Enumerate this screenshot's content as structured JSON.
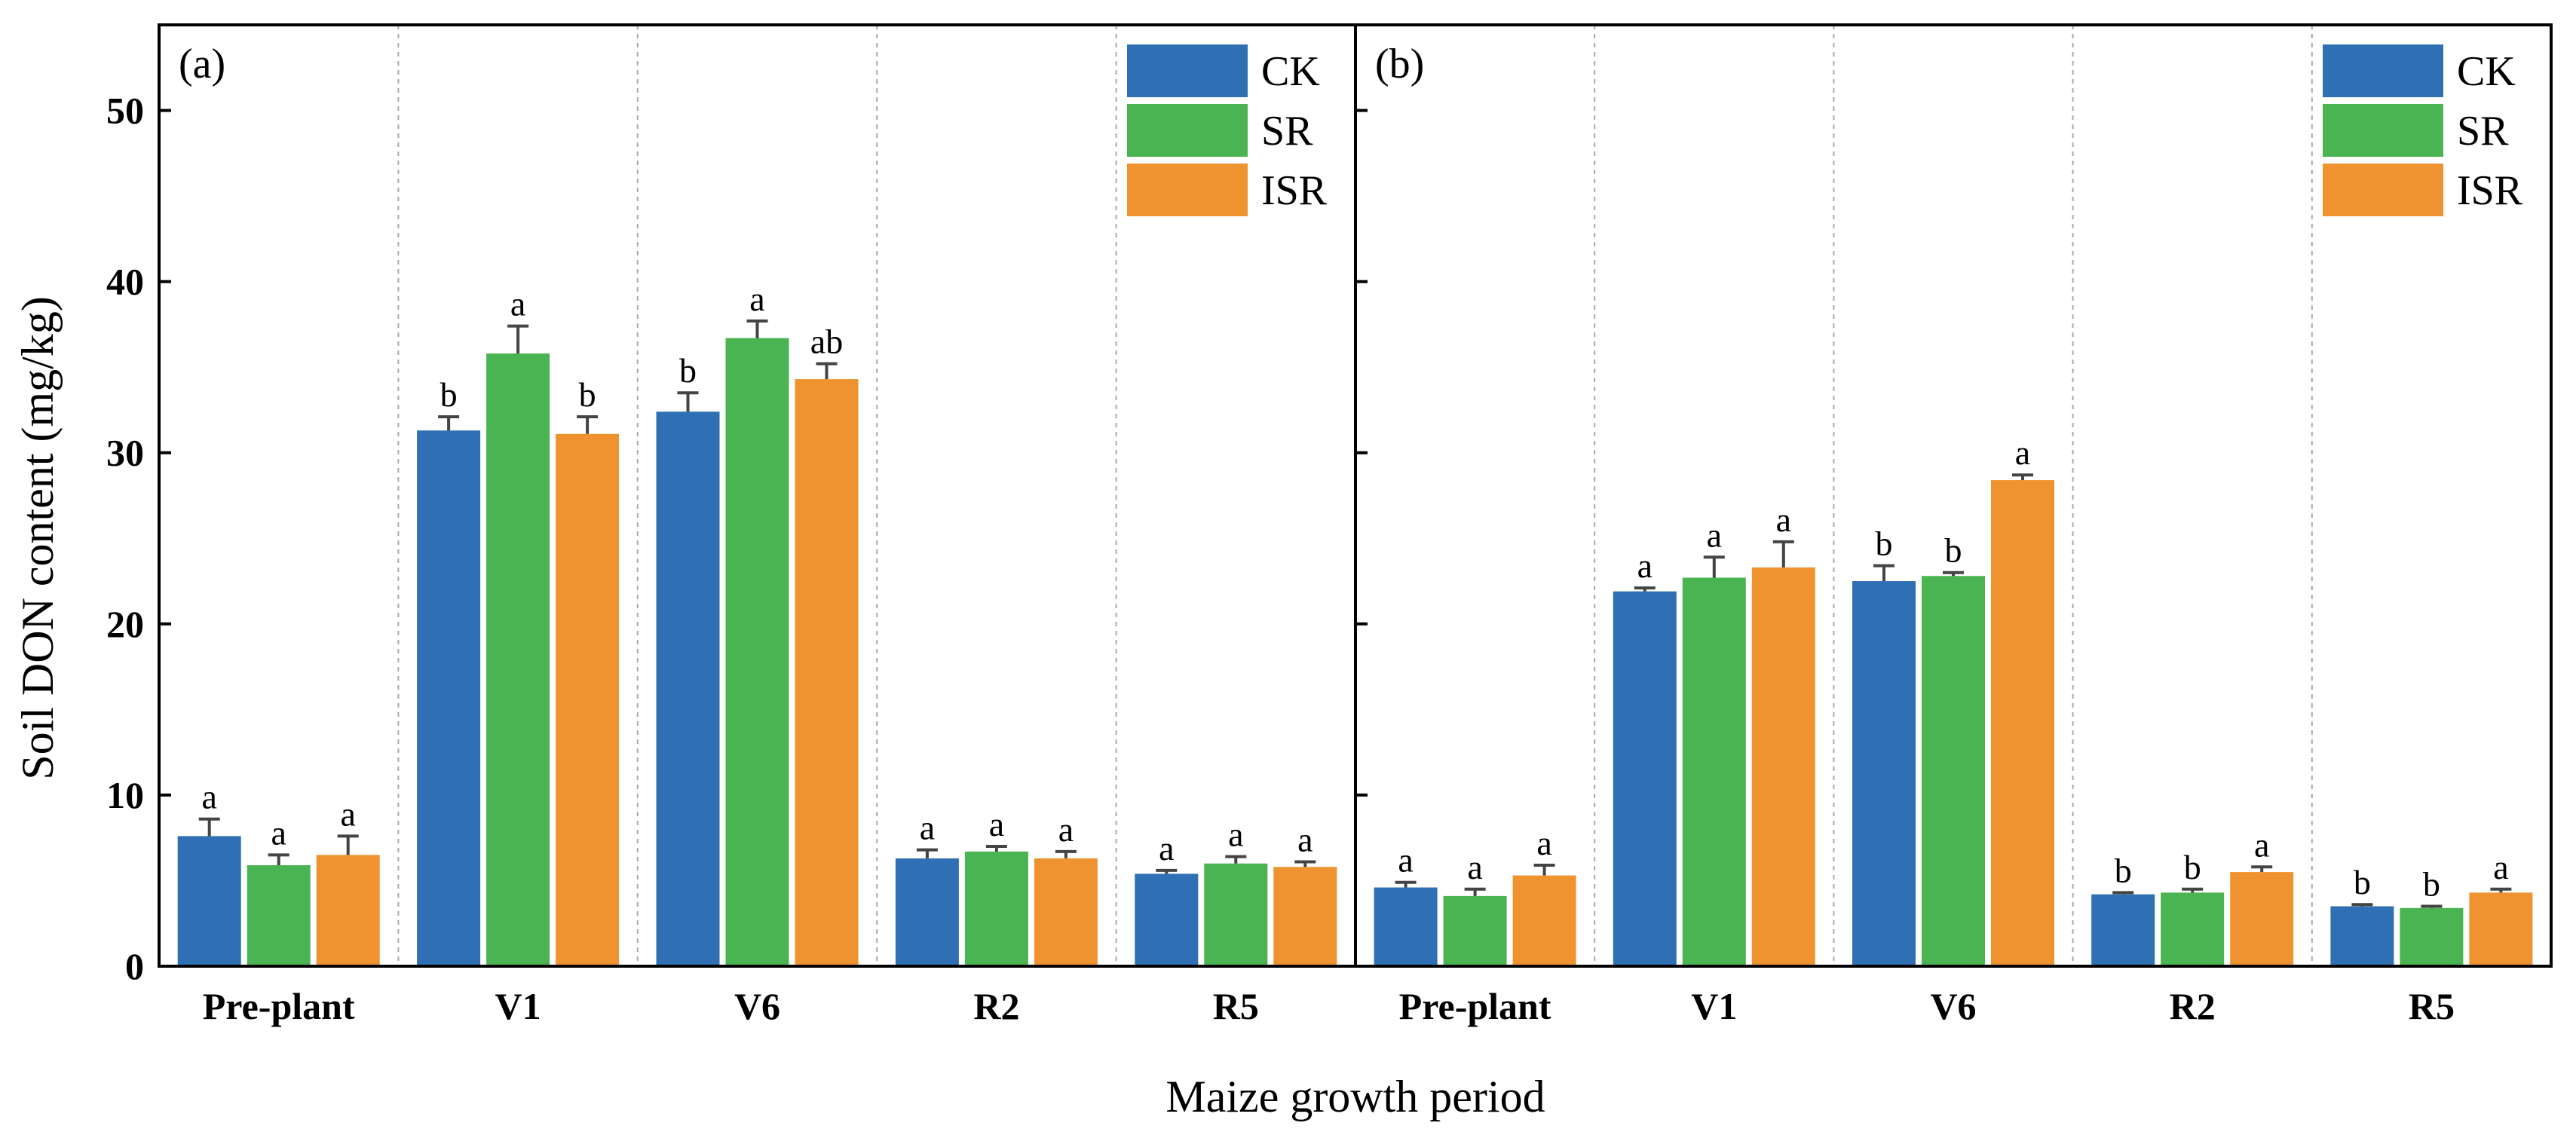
{
  "chart_data": {
    "type": "bar",
    "ylabel": "Soil DON content (mg/kg)",
    "xlabel": "Maize growth period",
    "ylim": [
      0,
      55
    ],
    "yticks": [
      0,
      10,
      20,
      30,
      40,
      50
    ],
    "grid": "vertical dashed separators between groups",
    "legend_placement": "top-right",
    "categories": [
      "Pre-plant",
      "V1",
      "V6",
      "R2",
      "R5"
    ],
    "colors": {
      "CK": "#2f70b5",
      "SR": "#4bb452",
      "ISR": "#ef9331"
    },
    "panels": [
      {
        "label": "(a)",
        "series": [
          {
            "name": "CK",
            "values": [
              7.6,
              31.3,
              32.4,
              6.3,
              5.4
            ],
            "errors": [
              1.0,
              0.8,
              1.1,
              0.5,
              0.2
            ],
            "letters": [
              "a",
              "b",
              "b",
              "a",
              "a"
            ]
          },
          {
            "name": "SR",
            "values": [
              5.9,
              35.8,
              36.7,
              6.7,
              6.0
            ],
            "errors": [
              0.6,
              1.6,
              1.0,
              0.3,
              0.4
            ],
            "letters": [
              "a",
              "a",
              "a",
              "a",
              "a"
            ]
          },
          {
            "name": "ISR",
            "values": [
              6.5,
              31.1,
              34.3,
              6.3,
              5.8
            ],
            "errors": [
              1.1,
              1.0,
              0.9,
              0.4,
              0.3
            ],
            "letters": [
              "a",
              "b",
              "ab",
              "a",
              "a"
            ]
          }
        ]
      },
      {
        "label": "(b)",
        "series": [
          {
            "name": "CK",
            "values": [
              4.6,
              21.9,
              22.5,
              4.2,
              3.5
            ],
            "errors": [
              0.3,
              0.2,
              0.9,
              0.1,
              0.1
            ],
            "letters": [
              "a",
              "a",
              "b",
              "b",
              "b"
            ]
          },
          {
            "name": "SR",
            "values": [
              4.1,
              22.7,
              22.8,
              4.3,
              3.4
            ],
            "errors": [
              0.4,
              1.2,
              0.2,
              0.2,
              0.1
            ],
            "letters": [
              "a",
              "a",
              "b",
              "b",
              "b"
            ]
          },
          {
            "name": "ISR",
            "values": [
              5.3,
              23.3,
              28.4,
              5.5,
              4.3
            ],
            "errors": [
              0.6,
              1.5,
              0.3,
              0.3,
              0.2
            ],
            "letters": [
              "a",
              "a",
              "a",
              "a",
              "a"
            ]
          }
        ]
      }
    ]
  }
}
